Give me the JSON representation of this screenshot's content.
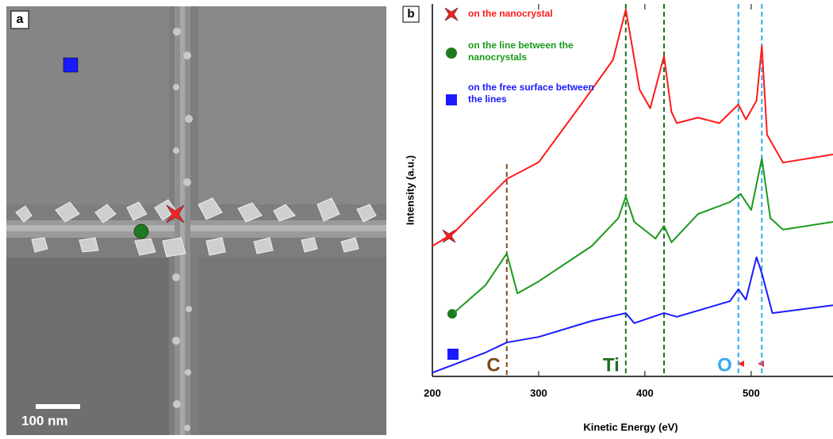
{
  "panel_a": {
    "label": "a",
    "scale_bar": "100 nm"
  },
  "chart_data": {
    "type": "line",
    "panel_label": "b",
    "x_label": "Kinetic Energy (eV)",
    "y_label": "Intensity (a.u.)",
    "xlim": [
      200,
      577
    ],
    "xticks": [
      200,
      300,
      400,
      500
    ],
    "ylim": [
      0,
      100
    ],
    "series": [
      {
        "name": "on the nanocrystal",
        "color": "#ff1a1a",
        "x": [
          200,
          220,
          270,
          300,
          340,
          370,
          382,
          395,
          405,
          418,
          425,
          430,
          450,
          470,
          488,
          495,
          505,
          510,
          515,
          530,
          577
        ],
        "values": [
          35,
          38.5,
          53,
          57.5,
          73,
          85,
          98.5,
          77,
          72,
          86,
          71,
          68,
          69.5,
          68,
          73,
          69,
          74,
          88.7,
          64.9,
          57.4,
          59.6
        ]
      },
      {
        "name": "on the line between the nanocrystals",
        "color": "#1a9a1a",
        "x": [
          220,
          250,
          270,
          280,
          300,
          350,
          375,
          382,
          390,
          410,
          418,
          425,
          450,
          480,
          490,
          500,
          510,
          518,
          530,
          577
        ],
        "values": [
          17,
          24.5,
          33,
          22.3,
          25.5,
          35,
          42.5,
          48.3,
          41.5,
          37,
          40.4,
          36,
          43.6,
          46.8,
          49,
          44.7,
          58.5,
          42.5,
          39.4,
          41.5
        ]
      },
      {
        "name": "on the free surface between the lines",
        "color": "#1a1aff",
        "x": [
          200,
          250,
          270,
          300,
          350,
          382,
          390,
          418,
          430,
          480,
          488,
          495,
          505,
          510,
          520,
          577
        ],
        "values": [
          1,
          6.4,
          9.1,
          10.6,
          14.9,
          17,
          14.3,
          17,
          16,
          20.2,
          23.4,
          20.6,
          32,
          27.7,
          17,
          19.1
        ]
      }
    ],
    "reference_lines": [
      {
        "x": 270,
        "color": "#7a4a1e",
        "label": "C"
      },
      {
        "x": 382,
        "color": "#1e6e1e",
        "label": "Ti"
      },
      {
        "x": 418,
        "color": "#1e6e1e"
      },
      {
        "x": 488,
        "color": "#33aaee",
        "label": "O"
      },
      {
        "x": 510,
        "color": "#33aaee"
      }
    ]
  }
}
